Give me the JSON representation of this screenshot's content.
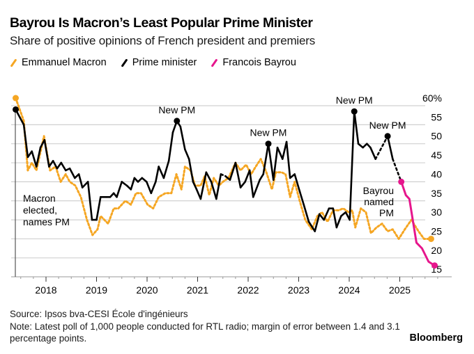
{
  "header": {
    "title": "Bayrou Is Macron’s Least Popular Prime Minister",
    "subtitle": "Share of positive opinions of French president and premiers"
  },
  "legend": [
    {
      "label": "Emmanuel Macron",
      "color": "#f5a623"
    },
    {
      "label": "Prime minister",
      "color": "#000000"
    },
    {
      "label": "Francois Bayrou",
      "color": "#e6168c"
    }
  ],
  "footer": {
    "source": "Source: Ipsos bva-CESI École d'ingénieurs",
    "note": "Note: Latest poll of 1,000 people conducted for RTL radio; margin of error between 1.4 and 3.1 percentage points.",
    "brand": "Bloomberg"
  },
  "chart_data": {
    "type": "line",
    "title": "Bayrou Is Macron’s Least Popular Prime Minister",
    "subtitle": "Share of positive opinions of French president and premiers",
    "xlabel": "",
    "ylabel": "",
    "xlim": [
      2017.38,
      2025.75
    ],
    "ylim": [
      15,
      60
    ],
    "x_ticks": [
      2018,
      2019,
      2020,
      2021,
      2022,
      2023,
      2024,
      2025
    ],
    "x_tick_labels": [
      "2018",
      "2019",
      "2020",
      "2021",
      "2022",
      "2023",
      "2024",
      "2025"
    ],
    "y_ticks": [
      15,
      20,
      25,
      30,
      35,
      40,
      45,
      50,
      55,
      60
    ],
    "y_tick_labels": [
      "15",
      "20",
      "25",
      "30",
      "35",
      "40",
      "45",
      "50",
      "55",
      "60%"
    ],
    "y_axis_side": "right",
    "grid": true,
    "legend_position": "top-left",
    "series": [
      {
        "name": "Emmanuel Macron",
        "color": "#f5a623",
        "style": "dotted",
        "x": [
          2017.4,
          2017.56,
          2017.64,
          2017.72,
          2017.81,
          2017.96,
          2018.08,
          2018.19,
          2018.29,
          2018.39,
          2018.47,
          2018.58,
          2018.69,
          2018.81,
          2018.92,
          2019.02,
          2019.08,
          2019.23,
          2019.34,
          2019.43,
          2019.57,
          2019.68,
          2019.78,
          2019.88,
          2020.01,
          2020.12,
          2020.23,
          2020.36,
          2020.48,
          2020.58,
          2020.68,
          2020.75,
          2020.86,
          2020.95,
          2021.06,
          2021.14,
          2021.23,
          2021.32,
          2021.42,
          2021.5,
          2021.61,
          2021.75,
          2021.85,
          2021.96,
          2022.06,
          2022.15,
          2022.25,
          2022.36,
          2022.47,
          2022.55,
          2022.66,
          2022.74,
          2022.83,
          2022.92,
          2023.02,
          2023.13,
          2023.26,
          2023.37,
          2023.46,
          2023.57,
          2023.68,
          2023.79,
          2023.88,
          2023.99,
          2024.06,
          2024.12,
          2024.23,
          2024.33,
          2024.43,
          2024.54,
          2024.65,
          2024.76,
          2024.86,
          2024.98,
          2025.1,
          2025.23,
          2025.37,
          2025.48,
          2025.62
        ],
        "y": [
          62,
          56,
          43,
          45,
          43,
          52,
          43,
          44,
          40,
          42,
          40,
          39,
          36,
          30,
          26,
          27.5,
          31,
          29,
          33,
          33,
          35,
          34,
          37,
          37,
          34,
          33,
          36,
          37,
          37,
          42,
          38,
          44,
          43,
          39,
          39,
          41.5,
          36.5,
          41,
          39,
          40,
          41,
          45,
          43,
          44.5,
          42,
          44,
          46,
          42.5,
          38,
          42.5,
          42.5,
          42,
          36,
          40,
          35,
          30,
          27.5,
          31,
          32,
          29.5,
          32.5,
          32.5,
          33,
          32,
          32.5,
          28,
          33,
          32,
          26.5,
          28,
          29,
          27,
          27.5,
          25,
          27.5,
          30,
          27,
          25,
          25
        ],
        "end_marker": true,
        "start_marker": true
      },
      {
        "name": "Prime minister",
        "color": "#000000",
        "style": "solid",
        "x": [
          2017.4,
          2017.56,
          2017.64,
          2017.72,
          2017.81,
          2017.89,
          2017.97,
          2018.06,
          2018.14,
          2018.22,
          2018.3,
          2018.39,
          2018.47,
          2018.57,
          2018.65,
          2018.72,
          2018.83,
          2018.91,
          2019.0,
          2019.08,
          2019.19,
          2019.27,
          2019.34,
          2019.4,
          2019.5,
          2019.6,
          2019.68,
          2019.75,
          2019.82,
          2019.9,
          2019.99,
          2020.08,
          2020.17,
          2020.23,
          2020.33,
          2020.43,
          2020.51,
          2020.59,
          2020.66,
          2020.75,
          2020.83,
          2020.91,
          2020.98,
          2021.06,
          2021.17,
          2021.27,
          2021.37,
          2021.46,
          2021.55,
          2021.64,
          2021.75,
          2021.85,
          2021.94,
          2022.03,
          2022.1,
          2022.23,
          2022.3,
          2022.4,
          2022.5,
          2022.58,
          2022.68,
          2022.76,
          2022.83,
          2022.92,
          2023.02,
          2023.1,
          2023.2,
          2023.32,
          2023.41,
          2023.5,
          2023.6,
          2023.68,
          2023.75,
          2023.84,
          2023.93,
          2024.01,
          2024.1,
          2024.18,
          2024.27,
          2024.35,
          2024.42,
          2024.52,
          2024.76,
          2024.86,
          2025.03
        ],
        "y": [
          59,
          55,
          46.5,
          48,
          44,
          49,
          51,
          44,
          45.5,
          43.5,
          45,
          43,
          43.5,
          41,
          42,
          38.5,
          40,
          30,
          30,
          36,
          36,
          36,
          37,
          36,
          40,
          39,
          38,
          41,
          40,
          41,
          40,
          37,
          40,
          44,
          41,
          45.5,
          53,
          56,
          54.5,
          48.5,
          46,
          40,
          38,
          35.5,
          42.5,
          40,
          35.5,
          42,
          41.5,
          40.5,
          45,
          38.5,
          40,
          43,
          36,
          40.5,
          42,
          50,
          40.5,
          49,
          46,
          50.5,
          41,
          42,
          37.5,
          34,
          29.5,
          27,
          31.5,
          30,
          33,
          33,
          28,
          31,
          32,
          30,
          58.5,
          50,
          49,
          50,
          49,
          46,
          52,
          46,
          40
        ],
        "dotted_segments_after_x": [
          2021.46,
          2024.52,
          2024.86
        ],
        "new_pm_markers_x": [
          2017.4,
          2020.59,
          2022.4,
          2024.1,
          2024.76
        ]
      },
      {
        "name": "Francois Bayrou",
        "color": "#e6168c",
        "style": "solid",
        "x": [
          2025.03,
          2025.12,
          2025.19,
          2025.33,
          2025.44,
          2025.57,
          2025.69
        ],
        "y": [
          40,
          36.5,
          35.5,
          24,
          22.5,
          19,
          18
        ],
        "start_marker": true,
        "end_marker": true
      }
    ],
    "annotations": [
      {
        "text": "Macron elected, names PM",
        "x": 2017.45,
        "y": 32
      },
      {
        "text": "New PM",
        "x": 2020.59,
        "y": 56
      },
      {
        "text": "New PM",
        "x": 2022.4,
        "y": 50
      },
      {
        "text": "New PM",
        "x": 2024.1,
        "y": 58.5
      },
      {
        "text": "New PM",
        "x": 2024.76,
        "y": 52
      },
      {
        "text": "Bayrou named PM",
        "x": 2024.65,
        "y": 34
      }
    ]
  }
}
